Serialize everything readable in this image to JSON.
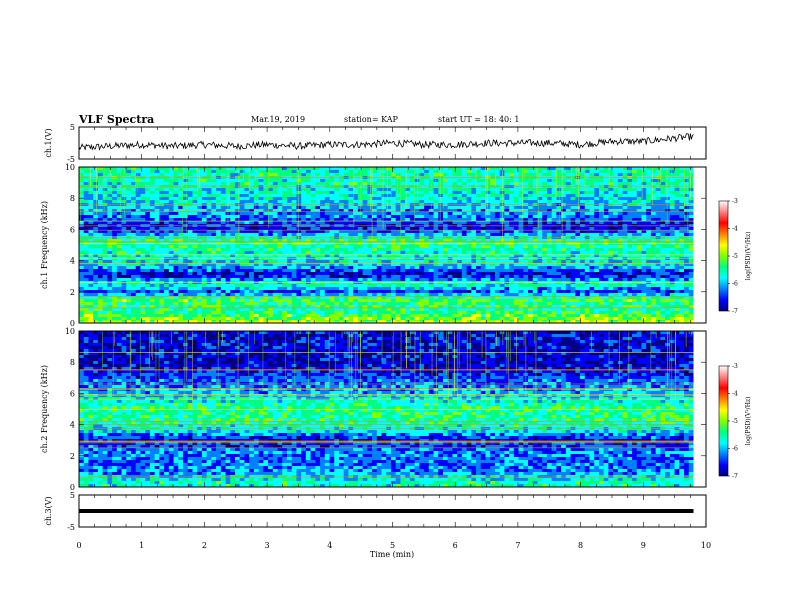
{
  "header": {
    "title": "VLF Spectra",
    "date": "Mar.19, 2019",
    "station": "station= KAP",
    "start": "start  UT =   18: 40: 1"
  },
  "colorbar": {
    "label": "log(PSD)(V²/Hz)",
    "ticks": [
      "-3",
      "-4",
      "-5",
      "-6",
      "-7"
    ],
    "colors": [
      "#000080",
      "#0000ff",
      "#0080ff",
      "#00ffff",
      "#00ff80",
      "#80ff00",
      "#ffff00",
      "#ff8000",
      "#ff0000",
      "#ff8080",
      "#ffffff"
    ]
  },
  "chart_data": [
    {
      "type": "line",
      "panel": "ch.1 waveform",
      "ylabel": "ch.1(V)",
      "ylim": [
        -5,
        5
      ],
      "yticks": [
        "5",
        "-5"
      ],
      "xlim": [
        0,
        10
      ],
      "line_color": "#000000",
      "x": [
        0.0,
        0.5,
        1.0,
        1.5,
        2.0,
        2.5,
        3.0,
        3.5,
        4.0,
        4.5,
        5.0,
        5.5,
        6.0,
        6.5,
        7.0,
        7.5,
        8.0,
        8.5,
        9.0,
        9.5,
        9.8
      ],
      "y": [
        -1.5,
        -1,
        -0.5,
        -1,
        -0.5,
        -1,
        -0.5,
        -1,
        -0.5,
        -0.5,
        0,
        -0.5,
        -0.5,
        0,
        0,
        0,
        -0.5,
        0.5,
        0.5,
        1.5,
        2
      ]
    },
    {
      "type": "heatmap",
      "panel": "ch.1 spectrogram",
      "ylabel": "ch.1 Frequency (kHz)",
      "ylim": [
        0,
        10
      ],
      "yticks": [
        "0",
        "2",
        "4",
        "6",
        "8",
        "10"
      ],
      "xlim": [
        0,
        10
      ],
      "zlim": [
        -7,
        -3
      ],
      "bands": [
        {
          "f": 9.0,
          "level": -5.4
        },
        {
          "f": 8.0,
          "level": -5.6
        },
        {
          "f": 7.0,
          "level": -6.0
        },
        {
          "f": 6.0,
          "level": -6.4
        },
        {
          "f": 5.3,
          "level": -5.2
        },
        {
          "f": 4.5,
          "level": -5.4
        },
        {
          "f": 3.6,
          "level": -5.8
        },
        {
          "f": 3.1,
          "level": -6.6
        },
        {
          "f": 2.5,
          "level": -5.3
        },
        {
          "f": 2.0,
          "level": -6.2
        },
        {
          "f": 1.5,
          "level": -5.0
        },
        {
          "f": 0.8,
          "level": -5.3
        },
        {
          "f": 0.3,
          "level": -4.8
        }
      ]
    },
    {
      "type": "heatmap",
      "panel": "ch.2 spectrogram",
      "ylabel": "ch.2 Frequency (kHz)",
      "ylim": [
        0,
        10
      ],
      "yticks": [
        "0",
        "2",
        "4",
        "6",
        "8",
        "10"
      ],
      "xlim": [
        0,
        10
      ],
      "zlim": [
        -7,
        -3
      ],
      "bands": [
        {
          "f": 9.0,
          "level": -6.5
        },
        {
          "f": 8.0,
          "level": -6.6
        },
        {
          "f": 7.0,
          "level": -6.2
        },
        {
          "f": 6.0,
          "level": -5.8
        },
        {
          "f": 5.2,
          "level": -5.3
        },
        {
          "f": 4.4,
          "level": -5.2
        },
        {
          "f": 3.6,
          "level": -5.6
        },
        {
          "f": 3.0,
          "level": -6.5
        },
        {
          "f": 2.3,
          "level": -6.0
        },
        {
          "f": 1.6,
          "level": -6.1
        },
        {
          "f": 0.9,
          "level": -5.9
        },
        {
          "f": 0.3,
          "level": -5.4
        }
      ]
    },
    {
      "type": "line",
      "panel": "ch.3 waveform",
      "ylabel": "ch.3(V)",
      "ylim": [
        -5,
        5
      ],
      "yticks": [
        "5",
        "-5"
      ],
      "xlim": [
        0,
        10
      ],
      "xlabel": "Time  (min)",
      "xticks": [
        "0",
        "1",
        "2",
        "3",
        "4",
        "5",
        "6",
        "7",
        "8",
        "9",
        "10"
      ],
      "line_color": "#000000",
      "x": [
        0,
        9.8
      ],
      "y": [
        0,
        0
      ]
    }
  ]
}
